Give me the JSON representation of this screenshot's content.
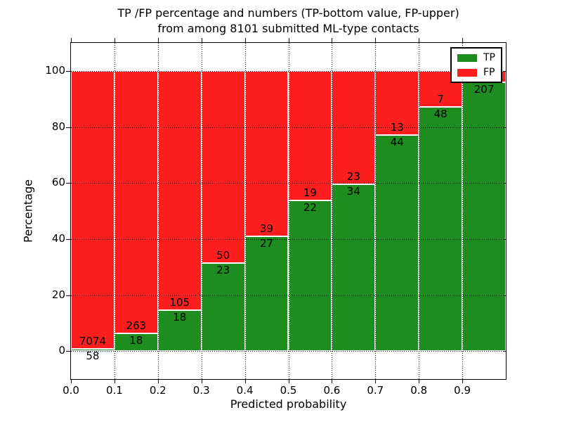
{
  "figure": {
    "title_line1": "TP /FP percentage and numbers (TP-bottom value, FP-upper)",
    "title_line2": "from among 8101 submitted ML-type contacts"
  },
  "legend": {
    "position": "upper right",
    "items": [
      {
        "label": "TP",
        "color": "#1e8c1e"
      },
      {
        "label": "FP",
        "color": "#fd1e1e"
      }
    ]
  },
  "chart_data": {
    "type": "bar",
    "stacked": true,
    "title": "TP /FP percentage and numbers (TP-bottom value, FP-upper)\nfrom among 8101 submitted ML-type contacts",
    "xlabel": "Predicted probability",
    "ylabel": "Percentage",
    "total_submitted_contacts": 8101,
    "xlim": [
      0.0,
      1.0
    ],
    "ylim": [
      -10,
      110
    ],
    "xticks": [
      0.0,
      0.1,
      0.2,
      0.3,
      0.4,
      0.5,
      0.6,
      0.7,
      0.8,
      0.9
    ],
    "xtick_labels": [
      "0.0",
      "0.1",
      "0.2",
      "0.3",
      "0.4",
      "0.5",
      "0.6",
      "0.7",
      "0.8",
      "0.9"
    ],
    "yticks": [
      0,
      20,
      40,
      60,
      80,
      100
    ],
    "ytick_labels": [
      "0",
      "20",
      "40",
      "60",
      "80",
      "100"
    ],
    "grid": "dotted",
    "legend_position": "upper right",
    "series_names": [
      "TP",
      "FP"
    ],
    "colors": {
      "tp": "#1e8c1e",
      "fp": "#fd1e1e",
      "bar_edge": "#ffffff"
    },
    "bins": [
      {
        "x0": 0.0,
        "x1": 0.1,
        "tp_count": 58,
        "fp_count": 7074,
        "tp_pct": 0.81,
        "fp_pct": 99.19,
        "tp_label": "58",
        "fp_label": "7074"
      },
      {
        "x0": 0.1,
        "x1": 0.2,
        "tp_count": 18,
        "fp_count": 263,
        "tp_pct": 6.41,
        "fp_pct": 93.59,
        "tp_label": "18",
        "fp_label": "263"
      },
      {
        "x0": 0.2,
        "x1": 0.3,
        "tp_count": 18,
        "fp_count": 105,
        "tp_pct": 14.63,
        "fp_pct": 85.37,
        "tp_label": "18",
        "fp_label": "105"
      },
      {
        "x0": 0.3,
        "x1": 0.4,
        "tp_count": 23,
        "fp_count": 50,
        "tp_pct": 31.51,
        "fp_pct": 68.49,
        "tp_label": "23",
        "fp_label": "50"
      },
      {
        "x0": 0.4,
        "x1": 0.5,
        "tp_count": 27,
        "fp_count": 39,
        "tp_pct": 40.91,
        "fp_pct": 59.09,
        "tp_label": "27",
        "fp_label": "39"
      },
      {
        "x0": 0.5,
        "x1": 0.6,
        "tp_count": 22,
        "fp_count": 19,
        "tp_pct": 53.66,
        "fp_pct": 46.34,
        "tp_label": "22",
        "fp_label": "19"
      },
      {
        "x0": 0.6,
        "x1": 0.7,
        "tp_count": 34,
        "fp_count": 23,
        "tp_pct": 59.65,
        "fp_pct": 40.35,
        "tp_label": "34",
        "fp_label": "23"
      },
      {
        "x0": 0.7,
        "x1": 0.8,
        "tp_count": 44,
        "fp_count": 13,
        "tp_pct": 77.19,
        "fp_pct": 22.81,
        "tp_label": "44",
        "fp_label": "13"
      },
      {
        "x0": 0.8,
        "x1": 0.9,
        "tp_count": 48,
        "fp_count": 7,
        "tp_pct": 87.27,
        "fp_pct": 12.73,
        "tp_label": "48",
        "fp_label": "7"
      },
      {
        "x0": 0.9,
        "x1": 1.0,
        "tp_count": 207,
        "fp_count": null,
        "tp_pct": 95.83,
        "fp_pct": 4.17,
        "tp_label": "207",
        "fp_label": ""
      }
    ]
  }
}
